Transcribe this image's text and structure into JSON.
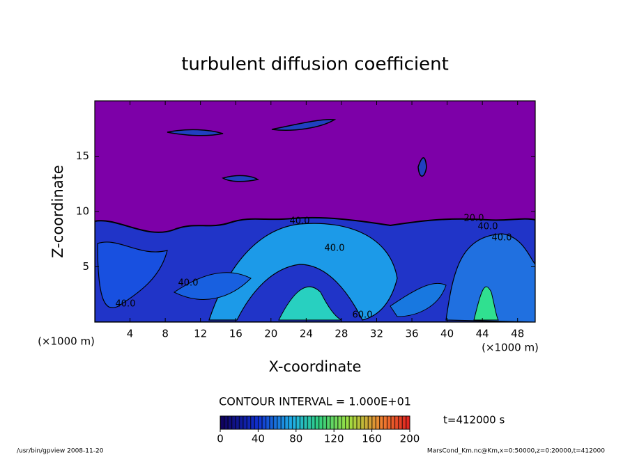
{
  "chart_data": {
    "type": "contour",
    "title": "turbulent diffusion coefficient",
    "xlabel": "X-coordinate",
    "ylabel": "Z-coordinate",
    "x_unit": "(×1000 m)",
    "xlim": [
      0,
      50
    ],
    "ylim": [
      0,
      20
    ],
    "xticks": [
      4,
      8,
      12,
      16,
      20,
      24,
      28,
      32,
      36,
      40,
      44,
      48
    ],
    "yticks": [
      5,
      10,
      15
    ],
    "contour_labels": [
      "20.0",
      "40.0",
      "40.0",
      "40.0",
      "40.0",
      "40.0",
      "40.0",
      "60.0"
    ],
    "contour_interval": "CONTOUR INTERVAL = 1.000E+01",
    "time": "t=412000 s",
    "colorbar": {
      "lim": [
        0,
        200
      ],
      "ticks": [
        0,
        40,
        80,
        120,
        160,
        200
      ]
    },
    "footer_left": "/usr/bin/gpview   2008-11-20",
    "footer_right": "MarsCond_Km.nc@Km,x=0:50000,z=0:20000,t=412000"
  }
}
